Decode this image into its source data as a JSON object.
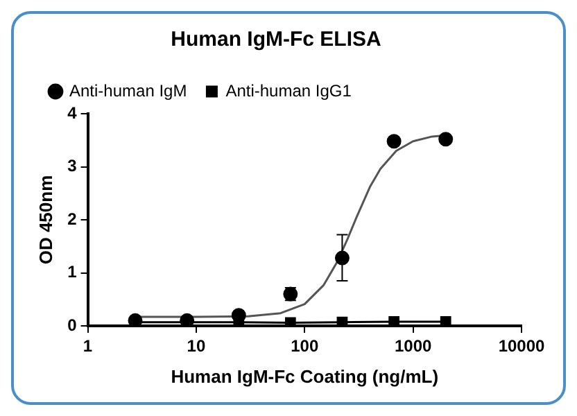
{
  "chart_data": {
    "type": "scatter",
    "title": "Human IgM-Fc ELISA",
    "xlabel": "Human IgM-Fc Coating (ng/mL)",
    "ylabel": "OD 450nm",
    "log": "x",
    "xlim": [
      1,
      10000
    ],
    "xticks": [
      1,
      10,
      100,
      1000,
      10000
    ],
    "ylim": [
      0,
      4
    ],
    "yticks": [
      0,
      1,
      2,
      3,
      4
    ],
    "grid": false,
    "legend": "top left",
    "x": [
      2.74,
      8.23,
      24.7,
      74,
      222,
      667,
      2000
    ],
    "series": [
      {
        "name": "Anti-human IgM",
        "type": "scatter",
        "marker": "circle",
        "color": "#000000",
        "values": [
          0.1,
          0.1,
          0.2,
          0.6,
          1.28,
          3.48,
          3.52
        ],
        "errors": [
          null,
          null,
          null,
          0.12,
          [
            0.85,
            1.72
          ],
          null,
          null
        ]
      },
      {
        "name": "Anti-human IgG1",
        "type": "line",
        "marker": "square",
        "color": "#000000",
        "values": [
          0.07,
          0.07,
          0.07,
          0.06,
          0.07,
          0.08,
          0.08
        ]
      },
      {
        "type": "line",
        "marker": "none",
        "color": "#555555",
        "x": [
          2.74,
          10,
          30,
          60,
          100,
          150,
          200,
          250,
          300,
          400,
          500,
          700,
          1000,
          1500,
          2000
        ],
        "values": [
          0.17,
          0.17,
          0.18,
          0.24,
          0.41,
          0.77,
          1.21,
          1.65,
          2.04,
          2.62,
          2.96,
          3.3,
          3.48,
          3.57,
          3.59
        ]
      }
    ]
  }
}
